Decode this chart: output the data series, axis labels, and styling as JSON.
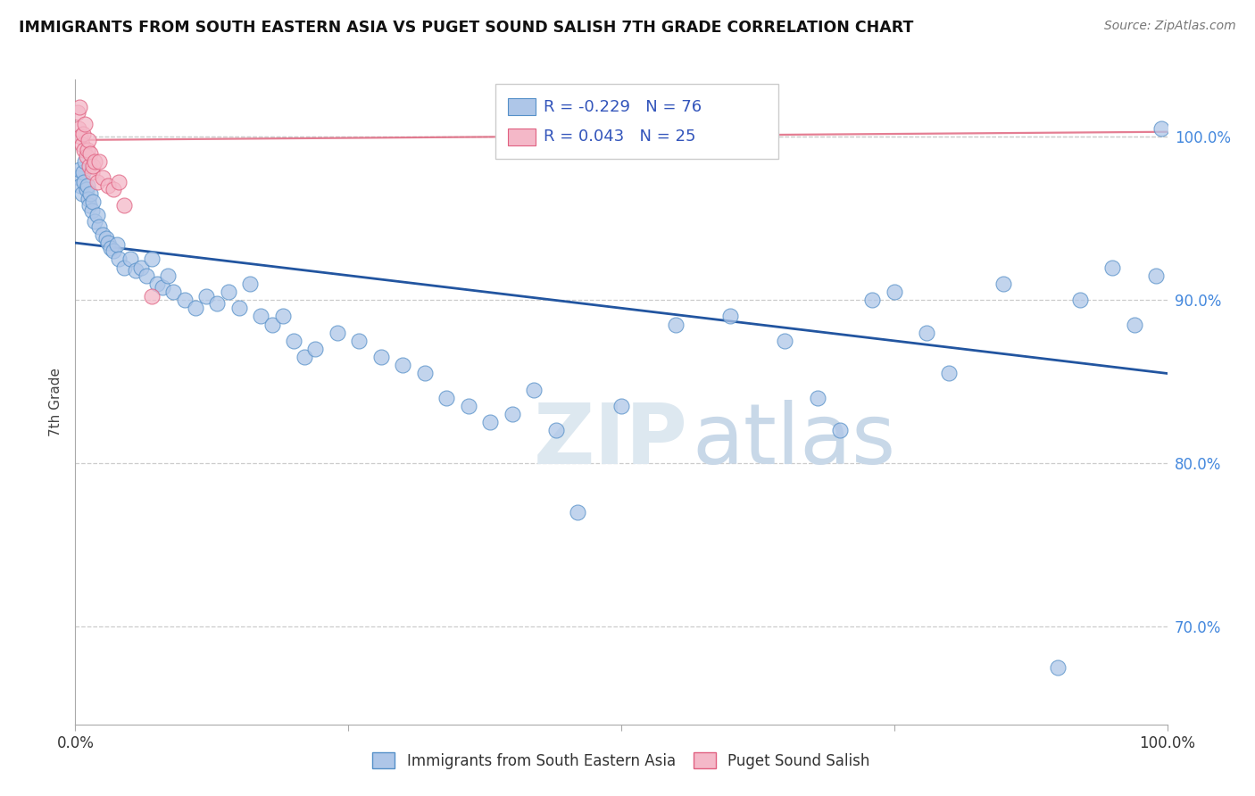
{
  "title": "IMMIGRANTS FROM SOUTH EASTERN ASIA VS PUGET SOUND SALISH 7TH GRADE CORRELATION CHART",
  "source": "Source: ZipAtlas.com",
  "ylabel": "7th Grade",
  "x_min": 0.0,
  "x_max": 100.0,
  "y_min": 64.0,
  "y_max": 103.5,
  "yticks": [
    70.0,
    80.0,
    90.0,
    100.0
  ],
  "blue_R": -0.229,
  "blue_N": 76,
  "pink_R": 0.043,
  "pink_N": 25,
  "blue_color": "#aec6e8",
  "blue_edge_color": "#5590c8",
  "blue_line_color": "#2255a0",
  "pink_color": "#f4b8c8",
  "pink_edge_color": "#e06080",
  "pink_line_color": "#e06880",
  "legend_label_blue": "Immigrants from South Eastern Asia",
  "legend_label_pink": "Puget Sound Salish",
  "blue_trend_x0": 0.0,
  "blue_trend_y0": 93.5,
  "blue_trend_x1": 100.0,
  "blue_trend_y1": 85.5,
  "pink_trend_x0": 0.0,
  "pink_trend_y0": 99.8,
  "pink_trend_x1": 100.0,
  "pink_trend_y1": 100.3,
  "blue_x": [
    0.3,
    0.4,
    0.5,
    0.6,
    0.7,
    0.8,
    0.9,
    1.0,
    1.1,
    1.2,
    1.3,
    1.4,
    1.5,
    1.6,
    1.8,
    2.0,
    2.2,
    2.5,
    2.8,
    3.0,
    3.2,
    3.5,
    3.8,
    4.0,
    4.5,
    5.0,
    5.5,
    6.0,
    6.5,
    7.0,
    7.5,
    8.0,
    8.5,
    9.0,
    10.0,
    11.0,
    12.0,
    13.0,
    14.0,
    15.0,
    16.0,
    17.0,
    18.0,
    19.0,
    20.0,
    21.0,
    22.0,
    24.0,
    26.0,
    28.0,
    30.0,
    32.0,
    34.0,
    36.0,
    38.0,
    40.0,
    42.0,
    44.0,
    46.0,
    50.0,
    55.0,
    60.0,
    65.0,
    68.0,
    70.0,
    73.0,
    75.0,
    78.0,
    80.0,
    85.0,
    90.0,
    92.0,
    95.0,
    97.0,
    99.0,
    99.5
  ],
  "blue_y": [
    97.5,
    98.0,
    97.0,
    96.5,
    97.8,
    97.2,
    98.5,
    96.8,
    97.0,
    96.2,
    95.8,
    96.5,
    95.5,
    96.0,
    94.8,
    95.2,
    94.5,
    94.0,
    93.8,
    93.5,
    93.2,
    93.0,
    93.4,
    92.5,
    92.0,
    92.5,
    91.8,
    92.0,
    91.5,
    92.5,
    91.0,
    90.8,
    91.5,
    90.5,
    90.0,
    89.5,
    90.2,
    89.8,
    90.5,
    89.5,
    91.0,
    89.0,
    88.5,
    89.0,
    87.5,
    86.5,
    87.0,
    88.0,
    87.5,
    86.5,
    86.0,
    85.5,
    84.0,
    83.5,
    82.5,
    83.0,
    84.5,
    82.0,
    77.0,
    83.5,
    88.5,
    89.0,
    87.5,
    84.0,
    82.0,
    90.0,
    90.5,
    88.0,
    85.5,
    91.0,
    67.5,
    90.0,
    92.0,
    88.5,
    91.5,
    100.5
  ],
  "pink_x": [
    0.2,
    0.3,
    0.4,
    0.5,
    0.6,
    0.7,
    0.8,
    0.9,
    1.0,
    1.1,
    1.2,
    1.3,
    1.4,
    1.5,
    1.6,
    1.8,
    2.0,
    2.2,
    2.5,
    3.0,
    3.5,
    4.0,
    4.5,
    55.0,
    7.0
  ],
  "pink_y": [
    101.5,
    100.5,
    101.8,
    100.0,
    99.5,
    100.2,
    99.2,
    100.8,
    98.8,
    99.2,
    99.8,
    98.2,
    99.0,
    97.8,
    98.2,
    98.5,
    97.2,
    98.5,
    97.5,
    97.0,
    96.8,
    97.2,
    95.8,
    100.5,
    90.2
  ]
}
